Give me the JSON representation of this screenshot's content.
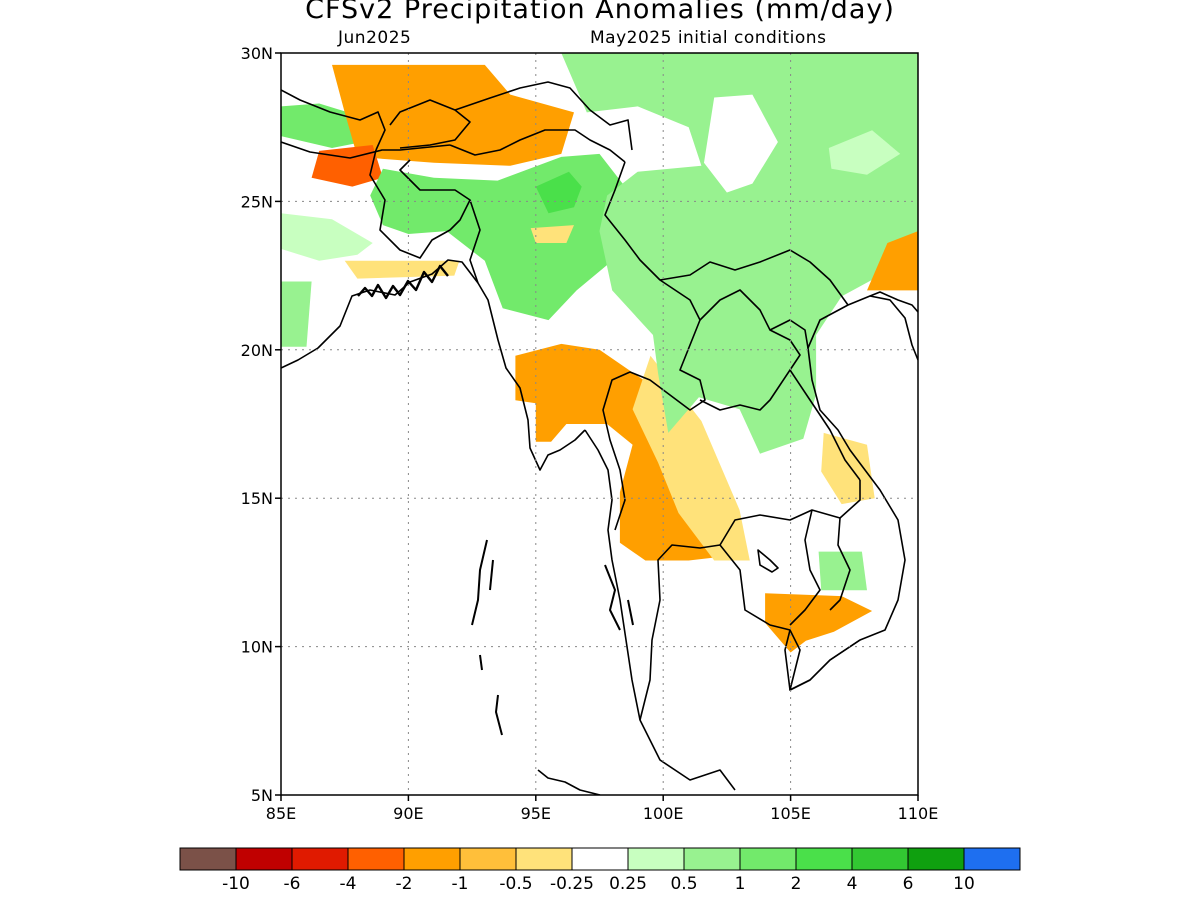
{
  "title": "CFSv2 Precipitation Anomalies (mm/day)",
  "subtitle_left": "Jun2025",
  "subtitle_right": "May2025 initial conditions",
  "map": {
    "lon_range": [
      85,
      110
    ],
    "lat_range": [
      5,
      30
    ],
    "lon_ticks": [
      "85E",
      "90E",
      "95E",
      "100E",
      "105E",
      "110E"
    ],
    "lat_ticks": [
      "5N",
      "10N",
      "15N",
      "20N",
      "25N",
      "30N"
    ],
    "grid": "dotted"
  },
  "colorbar": {
    "colors": [
      "#7b5148",
      "#c00000",
      "#e01a00",
      "#ff6000",
      "#ff9f00",
      "#ffbf3a",
      "#ffe27a",
      "#ffffff",
      "#c8ffc0",
      "#98f290",
      "#72ea6b",
      "#4ae04a",
      "#32c832",
      "#0fa00f",
      "#1e6ff0"
    ],
    "labels": [
      "-10",
      "-6",
      "-4",
      "-2",
      "-1",
      "-0.5",
      "-0.25",
      "0.25",
      "0.5",
      "1",
      "2",
      "4",
      "6",
      "10"
    ]
  },
  "regions": [
    {
      "name": "nw-green",
      "color": "#72ea6b",
      "pts": [
        [
          85,
          28.2
        ],
        [
          86.5,
          28.3
        ],
        [
          88,
          27.9
        ],
        [
          88.2,
          27
        ],
        [
          87,
          26.8
        ],
        [
          85,
          27.2
        ]
      ]
    },
    {
      "name": "himalaya-orange",
      "color": "#ff9f00",
      "pts": [
        [
          87,
          29.6
        ],
        [
          93,
          29.6
        ],
        [
          94,
          28.6
        ],
        [
          96.5,
          28
        ],
        [
          96,
          26.6
        ],
        [
          94,
          26.2
        ],
        [
          91,
          26.3
        ],
        [
          88,
          26.5
        ],
        [
          87.5,
          28
        ]
      ]
    },
    {
      "name": "himalaya-dark-orange",
      "color": "#ff6000",
      "pts": [
        [
          86.5,
          26.7
        ],
        [
          88.6,
          26.9
        ],
        [
          89,
          25.8
        ],
        [
          87.8,
          25.5
        ],
        [
          86.2,
          25.8
        ]
      ]
    },
    {
      "name": "assam-green",
      "color": "#72ea6b",
      "pts": [
        [
          89,
          26.1
        ],
        [
          91,
          25.8
        ],
        [
          93.5,
          25.7
        ],
        [
          96,
          26.5
        ],
        [
          97.5,
          26.6
        ],
        [
          98.5,
          25.5
        ],
        [
          99,
          24.6
        ],
        [
          98,
          23
        ],
        [
          96.6,
          22
        ],
        [
          95.5,
          21
        ],
        [
          93.7,
          21.4
        ],
        [
          93,
          23
        ],
        [
          91.5,
          24
        ],
        [
          90,
          23.9
        ],
        [
          89,
          24.2
        ],
        [
          88.5,
          25.2
        ]
      ]
    },
    {
      "name": "myanmar-dark-green",
      "color": "#4ae04a",
      "pts": [
        [
          95,
          25.5
        ],
        [
          96.3,
          26
        ],
        [
          96.8,
          25.5
        ],
        [
          96.5,
          24.8
        ],
        [
          95.5,
          24.6
        ]
      ]
    },
    {
      "name": "myanmar-yellow",
      "color": "#ffe27a",
      "pts": [
        [
          94.8,
          24.1
        ],
        [
          96.5,
          24.2
        ],
        [
          96.2,
          23.6
        ],
        [
          95,
          23.6
        ]
      ]
    },
    {
      "name": "bengal-light-green",
      "color": "#c8ffc0",
      "pts": [
        [
          85,
          24.6
        ],
        [
          87,
          24.4
        ],
        [
          88.6,
          23.6
        ],
        [
          88,
          23.2
        ],
        [
          86.5,
          23
        ],
        [
          85,
          23.4
        ]
      ]
    },
    {
      "name": "bengal-coast-yellow",
      "color": "#ffe27a",
      "pts": [
        [
          87.5,
          23
        ],
        [
          92,
          23
        ],
        [
          91.8,
          22.5
        ],
        [
          88,
          22.4
        ]
      ]
    },
    {
      "name": "odisha-green",
      "color": "#98f290",
      "pts": [
        [
          85,
          22.3
        ],
        [
          86.2,
          22.3
        ],
        [
          86,
          20.1
        ],
        [
          85,
          20.1
        ]
      ]
    },
    {
      "name": "myanmar-delta-orange",
      "color": "#ff9f00",
      "pts": [
        [
          94.2,
          19.8
        ],
        [
          96,
          20.2
        ],
        [
          97.5,
          20
        ],
        [
          99.2,
          19
        ],
        [
          100.5,
          17
        ],
        [
          101,
          15
        ],
        [
          102,
          13.6
        ],
        [
          103,
          13.1
        ],
        [
          101,
          12.9
        ],
        [
          99.3,
          12.9
        ],
        [
          98.3,
          13.5
        ],
        [
          98.3,
          15.2
        ],
        [
          98.8,
          16.8
        ],
        [
          97.8,
          17.5
        ],
        [
          96.2,
          17.5
        ],
        [
          95.6,
          16.9
        ],
        [
          95,
          16.9
        ],
        [
          95,
          18.2
        ],
        [
          94.2,
          18.3
        ]
      ]
    },
    {
      "name": "thai-yellow",
      "color": "#ffe27a",
      "pts": [
        [
          99.5,
          19.8
        ],
        [
          101.5,
          17.6
        ],
        [
          103,
          14.6
        ],
        [
          103.4,
          12.9
        ],
        [
          102,
          12.9
        ],
        [
          100.6,
          14.5
        ],
        [
          99.8,
          16.2
        ],
        [
          98.8,
          18
        ]
      ]
    },
    {
      "name": "china-green",
      "color": "#98f290",
      "pts": [
        [
          96,
          30
        ],
        [
          110,
          30
        ],
        [
          110,
          24
        ],
        [
          108.5,
          22.5
        ],
        [
          107,
          21.8
        ],
        [
          106,
          20.5
        ],
        [
          106,
          18.5
        ],
        [
          105.5,
          17
        ],
        [
          103.8,
          16.5
        ],
        [
          103,
          18
        ],
        [
          101.4,
          18.4
        ],
        [
          100.2,
          17.2
        ],
        [
          99.8,
          19.2
        ],
        [
          99.6,
          20.5
        ],
        [
          98,
          22
        ],
        [
          97.5,
          24
        ],
        [
          97.8,
          25.2
        ],
        [
          99,
          26
        ],
        [
          101.5,
          26.2
        ],
        [
          101,
          27.5
        ],
        [
          99,
          28.2
        ],
        [
          97,
          28
        ]
      ]
    },
    {
      "name": "china-white-gap",
      "color": "#ffffff",
      "pts": [
        [
          102,
          28.5
        ],
        [
          103.5,
          28.6
        ],
        [
          104.5,
          27
        ],
        [
          103.5,
          25.6
        ],
        [
          102.5,
          25.3
        ],
        [
          101.6,
          26.3
        ]
      ]
    },
    {
      "name": "china-light-patch",
      "color": "#c8ffc0",
      "pts": [
        [
          106.5,
          26.8
        ],
        [
          108.2,
          27.4
        ],
        [
          109.3,
          26.6
        ],
        [
          108,
          25.9
        ],
        [
          106.6,
          26.1
        ]
      ]
    },
    {
      "name": "south-china-orange",
      "color": "#ff9f00",
      "pts": [
        [
          108,
          22
        ],
        [
          110,
          22
        ],
        [
          110,
          24
        ],
        [
          108.8,
          23.6
        ]
      ]
    },
    {
      "name": "vietnam-yellow",
      "color": "#ffe27a",
      "pts": [
        [
          106.3,
          17.2
        ],
        [
          108,
          16.8
        ],
        [
          108.3,
          15
        ],
        [
          107,
          14.8
        ],
        [
          106.2,
          15.9
        ]
      ]
    },
    {
      "name": "cambodia-orange",
      "color": "#ff9f00",
      "pts": [
        [
          104,
          11.8
        ],
        [
          107,
          11.7
        ],
        [
          108.2,
          11.2
        ],
        [
          106.7,
          10.5
        ],
        [
          105.6,
          10.2
        ],
        [
          105,
          9.8
        ],
        [
          104,
          10.8
        ]
      ]
    },
    {
      "name": "cambodia-green",
      "color": "#98f290",
      "pts": [
        [
          106.1,
          13.2
        ],
        [
          107.8,
          13.2
        ],
        [
          108,
          11.9
        ],
        [
          106.2,
          11.9
        ]
      ]
    }
  ]
}
